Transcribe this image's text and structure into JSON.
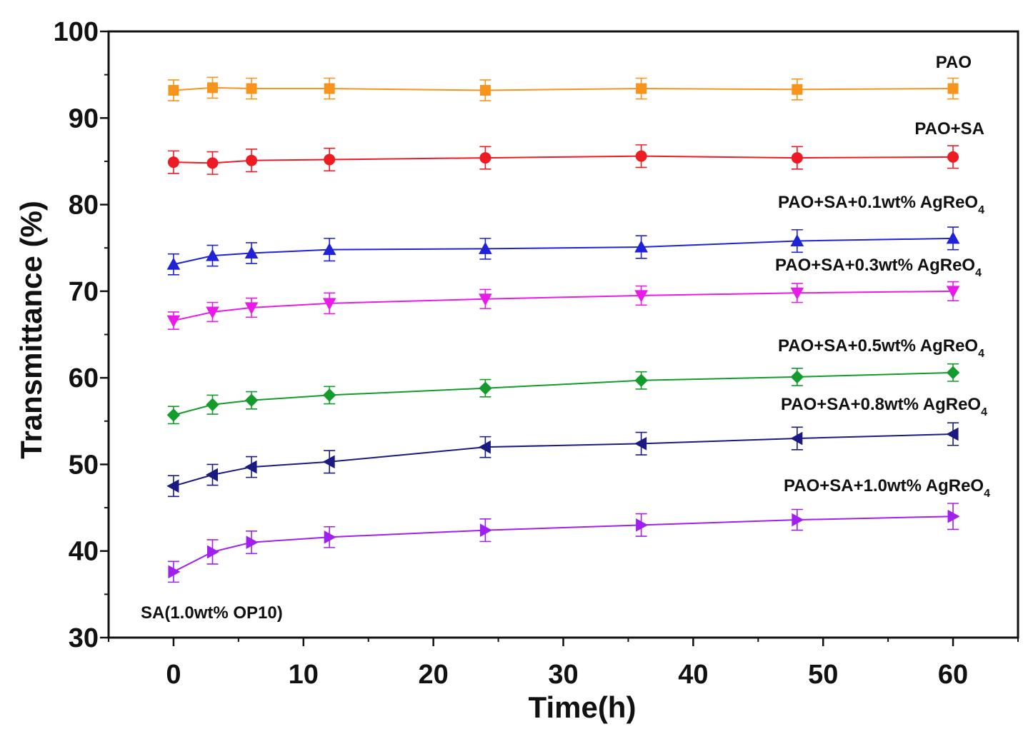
{
  "chart_data": {
    "type": "line",
    "xlabel": "Time(h)",
    "ylabel": "Transmittance (%)",
    "xlim": [
      -5,
      65
    ],
    "ylim": [
      30,
      100
    ],
    "x_ticks": [
      0,
      10,
      20,
      30,
      40,
      50,
      60
    ],
    "y_ticks": [
      30,
      40,
      50,
      60,
      70,
      80,
      90,
      100
    ],
    "grid": false,
    "x": [
      0,
      3,
      6,
      12,
      24,
      36,
      48,
      60
    ],
    "note": "SA(1.0wt% OP10)",
    "series": [
      {
        "name": "PAO",
        "label_parts": [
          "PAO"
        ],
        "color": "#F7941D",
        "marker": "square",
        "values": [
          93.2,
          93.5,
          93.4,
          93.4,
          93.2,
          93.4,
          93.3,
          93.4
        ],
        "errors": [
          1.2,
          1.2,
          1.2,
          1.2,
          1.2,
          1.2,
          1.2,
          1.2
        ]
      },
      {
        "name": "PAO+SA",
        "label_parts": [
          "PAO+SA"
        ],
        "color": "#ED1C24",
        "marker": "circle",
        "values": [
          84.9,
          84.8,
          85.1,
          85.2,
          85.4,
          85.6,
          85.4,
          85.5
        ],
        "errors": [
          1.3,
          1.3,
          1.3,
          1.3,
          1.3,
          1.3,
          1.3,
          1.3
        ]
      },
      {
        "name": "PAO+SA+0.1wt% AgReO4",
        "label_parts": [
          "PAO+SA+0.1wt% AgReO",
          "4"
        ],
        "color": "#1F22D6",
        "marker": "triangle-up",
        "values": [
          73.1,
          74.1,
          74.4,
          74.8,
          74.9,
          75.1,
          75.8,
          76.1
        ],
        "errors": [
          1.2,
          1.2,
          1.2,
          1.3,
          1.2,
          1.3,
          1.3,
          1.3
        ]
      },
      {
        "name": "PAO+SA+0.3wt% AgReO4",
        "label_parts": [
          "PAO+SA+0.3wt% AgReO",
          "4"
        ],
        "color": "#E81BE8",
        "marker": "triangle-down",
        "values": [
          66.6,
          67.6,
          68.1,
          68.6,
          69.1,
          69.5,
          69.8,
          70.0
        ],
        "errors": [
          1.0,
          1.1,
          1.1,
          1.2,
          1.1,
          1.1,
          1.1,
          1.1
        ]
      },
      {
        "name": "PAO+SA+0.5wt% AgReO4",
        "label_parts": [
          "PAO+SA+0.5wt% AgReO",
          "4"
        ],
        "color": "#139B2B",
        "marker": "diamond",
        "values": [
          55.7,
          56.9,
          57.4,
          58.0,
          58.8,
          59.7,
          60.1,
          60.6
        ],
        "errors": [
          1.0,
          1.1,
          1.0,
          1.0,
          1.0,
          1.0,
          1.0,
          1.0
        ]
      },
      {
        "name": "PAO+SA+0.8wt% AgReO4",
        "label_parts": [
          "PAO+SA+0.8wt% AgReO",
          "4"
        ],
        "color": "#1A1A80",
        "marker": "triangle-left",
        "values": [
          47.5,
          48.8,
          49.7,
          50.3,
          52.0,
          52.4,
          53.0,
          53.5
        ],
        "errors": [
          1.2,
          1.2,
          1.2,
          1.3,
          1.2,
          1.3,
          1.3,
          1.3
        ]
      },
      {
        "name": "PAO+SA+1.0wt% AgReO4",
        "label_parts": [
          "PAO+SA+1.0wt% AgReO",
          "4"
        ],
        "color": "#A020F0",
        "marker": "triangle-right",
        "values": [
          37.6,
          39.9,
          41.0,
          41.6,
          42.4,
          43.0,
          43.6,
          44.0
        ],
        "errors": [
          1.2,
          1.4,
          1.3,
          1.2,
          1.3,
          1.3,
          1.2,
          1.5
        ]
      }
    ]
  }
}
